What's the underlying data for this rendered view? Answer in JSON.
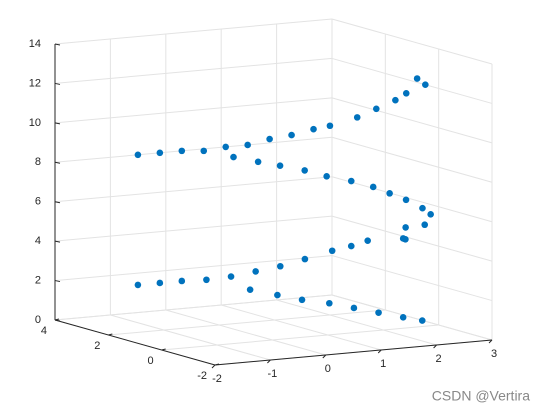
{
  "chart_data": {
    "type": "scatter3d",
    "color": "#0072BD",
    "grid": true,
    "x": [
      -0.6,
      -0.3,
      0,
      0.3,
      0.6,
      0.9,
      1.2,
      1.5,
      1.8,
      2.0,
      2.3,
      2.5,
      2.7,
      2.8,
      3.0,
      2.9,
      0.5,
      0.8,
      1.1,
      1.4,
      1.7,
      2.0,
      2.3,
      2.5,
      2.7,
      2.9,
      3.0,
      2.5,
      2.4,
      2.7,
      2.6,
      -0.6,
      -0.3,
      0,
      0.3,
      0.6,
      0.9,
      1.2,
      1.5,
      1.8,
      2.0,
      2.2,
      0.8,
      1.1,
      1.4,
      1.7,
      2.0,
      2.3,
      2.6,
      2.8
    ],
    "y": [
      3.8,
      3.6,
      3.4,
      3.2,
      3.0,
      2.8,
      2.6,
      2.4,
      2.2,
      2.0,
      1.6,
      1.3,
      1.0,
      0.8,
      0.5,
      0.6,
      2.5,
      2.2,
      2.0,
      1.7,
      1.5,
      1.2,
      1.0,
      0.8,
      0.6,
      0.4,
      0.3,
      0.2,
      0.0,
      -0.1,
      0.5,
      3.8,
      3.6,
      3.4,
      3.1,
      2.8,
      2.5,
      2.2,
      1.9,
      1.5,
      1.2,
      1.0,
      2.5,
      2.1,
      1.8,
      1.4,
      1.1,
      0.8,
      0.5,
      0.2
    ],
    "z": [
      8.1,
      8.2,
      8.3,
      8.3,
      8.5,
      8.6,
      8.9,
      9.1,
      9.4,
      9.6,
      10.1,
      10.6,
      11.1,
      11.5,
      12.0,
      12.3,
      8.2,
      8.0,
      7.8,
      7.6,
      7.3,
      7.1,
      6.8,
      6.5,
      6.2,
      5.8,
      5.5,
      5.0,
      4.5,
      5.2,
      4.3,
      1.5,
      1.6,
      1.7,
      1.8,
      2.0,
      2.3,
      2.6,
      3.0,
      3.5,
      3.8,
      4.1,
      1.4,
      1.2,
      1.0,
      0.9,
      0.7,
      0.5,
      0.3,
      0.2
    ],
    "xlim": [
      -2,
      3
    ],
    "xticks": [
      -2,
      -1,
      0,
      1,
      2,
      3
    ],
    "ylim": [
      -2,
      4
    ],
    "yticks": [
      -2,
      0,
      2,
      4
    ],
    "zlim": [
      0,
      14
    ],
    "zticks": [
      0,
      2,
      4,
      6,
      8,
      10,
      12,
      14
    ]
  },
  "watermark": "CSDN @Vertira"
}
